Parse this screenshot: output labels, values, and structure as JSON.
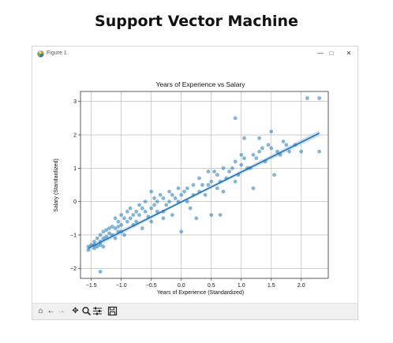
{
  "page": {
    "title": "Support Vector Machine"
  },
  "window": {
    "title": "Figure 1",
    "minimize_label": "—",
    "maximize_label": "□",
    "close_label": "✕"
  },
  "toolbar": {
    "icons": [
      "home-icon",
      "back-icon",
      "forward-icon",
      "pan-icon",
      "zoom-icon",
      "configure-icon",
      "save-icon"
    ]
  },
  "colors": {
    "points": "#1f77b4",
    "line": "#1f77b4",
    "band": "#aec7e8"
  },
  "chart_data": {
    "type": "scatter",
    "title": "Years of Experience vs Salary",
    "xlabel": "Years of Experience (Standardized)",
    "ylabel": "Salary (Standardized)",
    "xlim": [
      -1.68,
      2.45
    ],
    "ylim": [
      -2.3,
      3.3
    ],
    "xticks": [
      -1.5,
      -1.0,
      -0.5,
      0.0,
      0.5,
      1.0,
      1.5,
      2.0
    ],
    "xtick_labels": [
      "−1.5",
      "−1.0",
      "−0.5",
      "0.0",
      "0.5",
      "1.0",
      "1.5",
      "2.0"
    ],
    "yticks": [
      -2,
      -1,
      0,
      1,
      2,
      3
    ],
    "ytick_labels": [
      "−2",
      "−1",
      "0",
      "1",
      "2",
      "3"
    ],
    "grid": true,
    "regression": {
      "x": [
        -1.55,
        2.3
      ],
      "y": [
        -1.4,
        2.05
      ]
    },
    "points": {
      "x": [
        -1.55,
        -1.55,
        -1.5,
        -1.45,
        -1.45,
        -1.45,
        -1.4,
        -1.4,
        -1.35,
        -1.35,
        -1.35,
        -1.3,
        -1.3,
        -1.3,
        -1.25,
        -1.25,
        -1.2,
        -1.2,
        -1.15,
        -1.15,
        -1.1,
        -1.1,
        -1.1,
        -1.05,
        -1.05,
        -1.05,
        -1.0,
        -1.0,
        -1.0,
        -0.95,
        -0.95,
        -0.9,
        -0.9,
        -0.85,
        -0.85,
        -0.8,
        -0.8,
        -0.75,
        -0.75,
        -0.7,
        -0.7,
        -0.65,
        -0.65,
        -0.6,
        -0.6,
        -0.55,
        -0.5,
        -0.5,
        -0.5,
        -0.45,
        -0.45,
        -0.4,
        -0.4,
        -0.35,
        -0.3,
        -0.3,
        -0.25,
        -0.2,
        -0.2,
        -0.15,
        -0.15,
        -0.1,
        -0.05,
        -0.05,
        0.0,
        0.0,
        0.05,
        0.1,
        0.1,
        0.15,
        0.2,
        0.2,
        0.25,
        0.3,
        0.3,
        0.35,
        0.4,
        0.45,
        0.45,
        0.5,
        0.5,
        0.55,
        0.6,
        0.6,
        0.65,
        0.7,
        0.7,
        0.75,
        0.8,
        0.85,
        0.9,
        0.9,
        0.95,
        1.0,
        1.0,
        1.05,
        1.1,
        1.15,
        1.2,
        1.2,
        1.25,
        1.3,
        1.35,
        1.4,
        1.45,
        1.5,
        1.55,
        1.6,
        1.65,
        1.7,
        1.8,
        1.9,
        2.0,
        2.1,
        2.3,
        2.3,
        0.9,
        1.3,
        1.5,
        -1.35,
        0.65,
        1.05,
        -0.3,
        1.75
      ],
      "y": [
        -1.45,
        -1.35,
        -1.3,
        -1.3,
        -1.2,
        -1.4,
        -1.1,
        -1.35,
        -1.0,
        -1.2,
        -1.3,
        -0.9,
        -1.1,
        -1.35,
        -0.85,
        -1.05,
        -0.8,
        -0.95,
        -0.75,
        -1.0,
        -0.5,
        -0.8,
        -1.1,
        -0.6,
        -0.9,
        -0.75,
        -0.4,
        -0.7,
        -0.9,
        -0.5,
        -1.0,
        -0.3,
        -0.6,
        -0.2,
        -0.5,
        -0.4,
        -0.7,
        -0.3,
        -0.6,
        -0.1,
        -0.4,
        -0.2,
        -0.8,
        0.0,
        -0.3,
        -0.45,
        0.3,
        -0.2,
        -0.6,
        0.1,
        -0.1,
        -0.3,
        0.0,
        0.2,
        0.1,
        -0.3,
        -0.1,
        0.3,
        0.0,
        0.2,
        -0.4,
        0.1,
        0.4,
        0.0,
        0.2,
        -0.9,
        0.3,
        0.4,
        0.0,
        -0.2,
        0.5,
        0.2,
        -0.5,
        0.7,
        0.3,
        0.5,
        0.2,
        0.9,
        0.5,
        0.6,
        -0.4,
        0.9,
        0.8,
        0.4,
        0.6,
        1.0,
        0.3,
        0.7,
        0.9,
        1.0,
        1.2,
        0.6,
        0.8,
        1.1,
        1.4,
        1.3,
        1.0,
        1.0,
        0.4,
        1.4,
        1.3,
        1.5,
        1.6,
        1.2,
        1.7,
        1.6,
        0.8,
        1.5,
        1.4,
        1.8,
        1.5,
        1.7,
        1.5,
        3.1,
        3.1,
        1.5,
        2.5,
        1.9,
        2.1,
        -2.1,
        -0.4,
        1.9,
        -0.5,
        1.7
      ]
    }
  }
}
